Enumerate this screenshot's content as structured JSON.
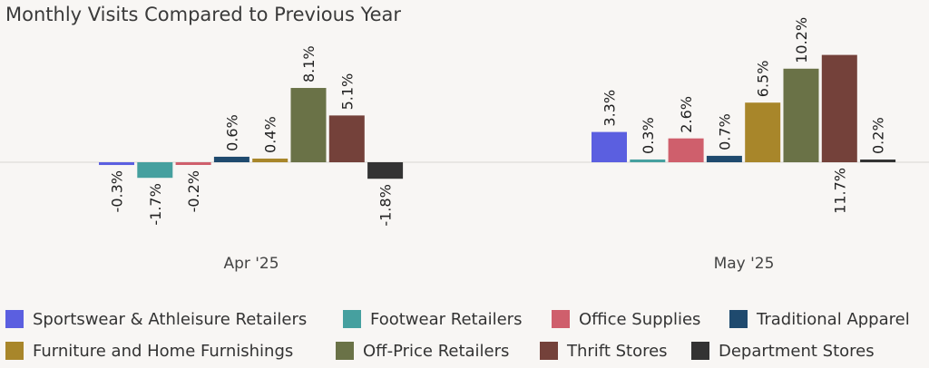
{
  "chart_data": {
    "type": "bar",
    "title": "Monthly Visits Compared to Previous Year",
    "categories": [
      "Apr '25",
      "May '25"
    ],
    "series": [
      {
        "name": "Sportswear & Athleisure Retailers",
        "color": "#5b5fe0",
        "values": [
          -0.3,
          3.3
        ],
        "labels": [
          "-0.3%",
          "3.3%"
        ]
      },
      {
        "name": "Footwear Retailers",
        "color": "#46a09f",
        "values": [
          -1.7,
          0.3
        ],
        "labels": [
          "-1.7%",
          "0.3%"
        ]
      },
      {
        "name": "Office Supplies",
        "color": "#cf5f6c",
        "values": [
          -0.2,
          2.6
        ],
        "labels": [
          "-0.2%",
          "2.6%"
        ]
      },
      {
        "name": "Traditional Apparel",
        "color": "#1f4a6e",
        "values": [
          0.6,
          0.7
        ],
        "labels": [
          "0.6%",
          "0.7%"
        ]
      },
      {
        "name": "Furniture and Home Furnishings",
        "color": "#a8862a",
        "values": [
          0.4,
          6.5
        ],
        "labels": [
          "0.4%",
          "6.5%"
        ]
      },
      {
        "name": "Off-Price Retailers",
        "color": "#6a7247",
        "values": [
          8.1,
          10.2
        ],
        "labels": [
          "8.1%",
          "10.2%"
        ]
      },
      {
        "name": "Thrift Stores",
        "color": "#74413a",
        "values": [
          5.1,
          11.7
        ],
        "labels": [
          "5.1%",
          "11.7%"
        ]
      },
      {
        "name": "Department Stores",
        "color": "#333333",
        "values": [
          -1.8,
          0.2
        ],
        "labels": [
          "-1.8%",
          "0.2%"
        ]
      }
    ],
    "legend_position": "bottom",
    "grid": false
  }
}
